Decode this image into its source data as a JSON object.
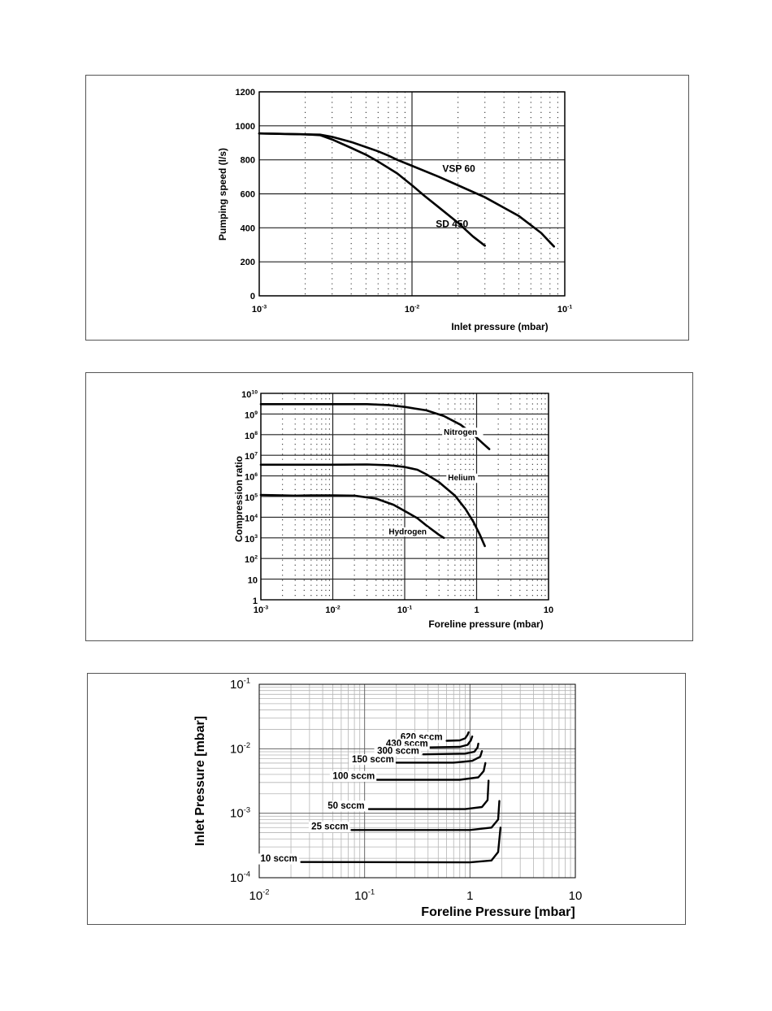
{
  "chart_data": [
    {
      "type": "line",
      "xscale": "log",
      "xlim": [
        0.001,
        0.1
      ],
      "ylim": [
        0,
        1200
      ],
      "xlabel": "Inlet pressure (mbar)",
      "ylabel": "Pumping speed (l/s)",
      "x_ticks": [
        {
          "value": 0.001,
          "mant": "10",
          "exp": "-3"
        },
        {
          "value": 0.01,
          "mant": "10",
          "exp": "-2"
        },
        {
          "value": 0.1,
          "mant": "10",
          "exp": "-1"
        }
      ],
      "y_ticks": [
        "0",
        "200",
        "400",
        "600",
        "800",
        "1000",
        "1200"
      ],
      "y_tick_values": [
        0,
        200,
        400,
        600,
        800,
        1000,
        1200
      ],
      "series": [
        {
          "name": "VSP 60",
          "points": [
            [
              0.001,
              955
            ],
            [
              0.002,
              950
            ],
            [
              0.0025,
              948
            ],
            [
              0.003,
              935
            ],
            [
              0.004,
              905
            ],
            [
              0.005,
              875
            ],
            [
              0.006,
              850
            ],
            [
              0.007,
              825
            ],
            [
              0.008,
              800
            ],
            [
              0.01,
              765
            ],
            [
              0.015,
              700
            ],
            [
              0.02,
              650
            ],
            [
              0.03,
              580
            ],
            [
              0.05,
              470
            ],
            [
              0.07,
              370
            ],
            [
              0.085,
              290
            ]
          ]
        },
        {
          "name": "SD 450",
          "points": [
            [
              0.001,
              955
            ],
            [
              0.002,
              950
            ],
            [
              0.0025,
              945
            ],
            [
              0.003,
              920
            ],
            [
              0.004,
              870
            ],
            [
              0.005,
              830
            ],
            [
              0.006,
              790
            ],
            [
              0.008,
              720
            ],
            [
              0.01,
              650
            ],
            [
              0.012,
              590
            ],
            [
              0.015,
              520
            ],
            [
              0.02,
              430
            ],
            [
              0.025,
              350
            ],
            [
              0.03,
              295
            ]
          ]
        }
      ],
      "series_labels": [
        {
          "series": "VSP 60",
          "text": "VSP 60",
          "at": [
            0.0158,
            728
          ]
        },
        {
          "series": "SD 450",
          "text": "SD 450",
          "at": [
            0.0143,
            405
          ]
        }
      ]
    },
    {
      "type": "line",
      "xscale": "log",
      "yscale": "log",
      "xlim": [
        0.001,
        10
      ],
      "ylim": [
        1,
        10000000000
      ],
      "xlabel": "Foreline pressure (mbar)",
      "ylabel": "Compression ratio",
      "x_ticks": [
        {
          "value": 0.001,
          "mant": "10",
          "exp": "-3"
        },
        {
          "value": 0.01,
          "mant": "10",
          "exp": "-2"
        },
        {
          "value": 0.1,
          "mant": "10",
          "exp": "-1"
        },
        {
          "value": 1,
          "mant": "1",
          "exp": ""
        },
        {
          "value": 10,
          "mant": "10",
          "exp": ""
        }
      ],
      "y_ticks": [
        {
          "value": 1,
          "mant": "1",
          "exp": ""
        },
        {
          "value": 10,
          "mant": "10",
          "exp": ""
        },
        {
          "value": 100,
          "mant": "10",
          "exp": "2"
        },
        {
          "value": 1000,
          "mant": "10",
          "exp": "3"
        },
        {
          "value": 10000,
          "mant": "10",
          "exp": "4"
        },
        {
          "value": 100000,
          "mant": "10",
          "exp": "5"
        },
        {
          "value": 1000000,
          "mant": "10",
          "exp": "6"
        },
        {
          "value": 10000000,
          "mant": "10",
          "exp": "7"
        },
        {
          "value": 100000000,
          "mant": "10",
          "exp": "8"
        },
        {
          "value": 1000000000,
          "mant": "10",
          "exp": "9"
        },
        {
          "value": 10000000000,
          "mant": "10",
          "exp": "10"
        }
      ],
      "series": [
        {
          "name": "Nitrogen",
          "points": [
            [
              0.001,
              3000000000
            ],
            [
              0.01,
              3000000000
            ],
            [
              0.03,
              3000000000
            ],
            [
              0.06,
              2700000000
            ],
            [
              0.1,
              2200000000
            ],
            [
              0.2,
              1500000000
            ],
            [
              0.35,
              800000000
            ],
            [
              0.6,
              300000000
            ],
            [
              0.9,
              100000000
            ],
            [
              1.2,
              40000000
            ],
            [
              1.5,
              20000000
            ]
          ]
        },
        {
          "name": "Helium",
          "points": [
            [
              0.001,
              3500000
            ],
            [
              0.01,
              3500000
            ],
            [
              0.03,
              3600000
            ],
            [
              0.06,
              3300000
            ],
            [
              0.1,
              2700000
            ],
            [
              0.15,
              2000000
            ],
            [
              0.2,
              1200000
            ],
            [
              0.3,
              500000
            ],
            [
              0.5,
              110000
            ],
            [
              0.7,
              25000
            ],
            [
              0.9,
              6000
            ],
            [
              1.1,
              1500
            ],
            [
              1.3,
              400
            ]
          ]
        },
        {
          "name": "Hydrogen",
          "points": [
            [
              0.001,
              120000
            ],
            [
              0.002,
              115000
            ],
            [
              0.003,
              110000
            ],
            [
              0.005,
              115000
            ],
            [
              0.01,
              115000
            ],
            [
              0.02,
              110000
            ],
            [
              0.04,
              80000
            ],
            [
              0.07,
              40000
            ],
            [
              0.1,
              20000
            ],
            [
              0.15,
              9000
            ],
            [
              0.2,
              4000
            ],
            [
              0.3,
              1400
            ],
            [
              0.35,
              1000
            ]
          ]
        }
      ],
      "series_labels": [
        {
          "series": "Nitrogen",
          "text": "Nitrogen",
          "at": [
            0.35,
            100000000
          ]
        },
        {
          "series": "Helium",
          "text": "Helium",
          "at": [
            0.4,
            600000
          ]
        },
        {
          "series": "Hydrogen",
          "text": "Hydrogen",
          "at": [
            0.06,
            1500
          ]
        }
      ]
    },
    {
      "type": "line",
      "xscale": "log",
      "yscale": "log",
      "xlim": [
        0.01,
        10
      ],
      "ylim": [
        0.0001,
        0.1
      ],
      "xlabel": "Foreline Pressure  [mbar]",
      "ylabel": "Inlet Pressure  [mbar]",
      "x_ticks": [
        {
          "value": 0.01,
          "mant": "10",
          "exp": "-2"
        },
        {
          "value": 0.1,
          "mant": "10",
          "exp": "-1"
        },
        {
          "value": 1,
          "mant": "1",
          "exp": ""
        },
        {
          "value": 10,
          "mant": "10",
          "exp": ""
        }
      ],
      "y_ticks": [
        {
          "value": 0.0001,
          "mant": "10",
          "exp": "-4"
        },
        {
          "value": 0.001,
          "mant": "10",
          "exp": "-3"
        },
        {
          "value": 0.01,
          "mant": "10",
          "exp": "-2"
        },
        {
          "value": 0.1,
          "mant": "10",
          "exp": "-1"
        }
      ],
      "series": [
        {
          "name": "620 sccm",
          "points": [
            [
              0.6,
              0.0133
            ],
            [
              0.8,
              0.0135
            ],
            [
              0.9,
              0.0145
            ],
            [
              0.95,
              0.0165
            ],
            [
              0.97,
              0.018
            ]
          ]
        },
        {
          "name": "430 sccm",
          "points": [
            [
              0.4,
              0.0105
            ],
            [
              0.8,
              0.0107
            ],
            [
              0.95,
              0.0115
            ],
            [
              1.02,
              0.0135
            ],
            [
              1.05,
              0.0155
            ]
          ]
        },
        {
          "name": "300 sccm",
          "points": [
            [
              0.36,
              0.0082
            ],
            [
              0.9,
              0.0084
            ],
            [
              1.1,
              0.009
            ],
            [
              1.18,
              0.0105
            ],
            [
              1.2,
              0.012
            ]
          ]
        },
        {
          "name": "150 sccm",
          "points": [
            [
              0.2,
              0.0061
            ],
            [
              0.7,
              0.0061
            ],
            [
              1.05,
              0.0065
            ],
            [
              1.25,
              0.0075
            ],
            [
              1.3,
              0.0092
            ]
          ]
        },
        {
          "name": "100 sccm",
          "points": [
            [
              0.13,
              0.0033
            ],
            [
              0.8,
              0.0033
            ],
            [
              1.2,
              0.0036
            ],
            [
              1.35,
              0.0045
            ],
            [
              1.4,
              0.006
            ]
          ]
        },
        {
          "name": "50 sccm",
          "points": [
            [
              0.11,
              0.00116
            ],
            [
              0.9,
              0.00116
            ],
            [
              1.3,
              0.00125
            ],
            [
              1.47,
              0.0016
            ],
            [
              1.5,
              0.0032
            ]
          ]
        },
        {
          "name": "25 sccm",
          "points": [
            [
              0.075,
              0.00055
            ],
            [
              1.0,
              0.00055
            ],
            [
              1.6,
              0.0006
            ],
            [
              1.85,
              0.0008
            ],
            [
              1.9,
              0.00155
            ]
          ]
        },
        {
          "name": "10 sccm",
          "points": [
            [
              0.025,
              0.000175
            ],
            [
              1.0,
              0.000173
            ],
            [
              1.6,
              0.000185
            ],
            [
              1.85,
              0.00025
            ],
            [
              1.95,
              0.0006
            ]
          ]
        }
      ],
      "series_labels": [
        {
          "series": "620 sccm",
          "text": "620 sccm",
          "at": [
            0.55,
            0.0137
          ]
        },
        {
          "series": "430 sccm",
          "text": "430 sccm",
          "at": [
            0.4,
            0.0108
          ]
        },
        {
          "series": "300 sccm",
          "text": "300 sccm",
          "at": [
            0.33,
            0.0084
          ]
        },
        {
          "series": "150 sccm",
          "text": "150 sccm",
          "at": [
            0.19,
            0.0062
          ]
        },
        {
          "series": "100 sccm",
          "text": "100 sccm",
          "at": [
            0.125,
            0.0034
          ]
        },
        {
          "series": "50 sccm",
          "text": "50 sccm",
          "at": [
            0.1,
            0.00118
          ]
        },
        {
          "series": "25 sccm",
          "text": "25 sccm",
          "at": [
            0.07,
            0.00056
          ]
        },
        {
          "series": "10 sccm",
          "text": "10 sccm",
          "at": [
            0.023,
            0.000178
          ]
        }
      ]
    }
  ]
}
